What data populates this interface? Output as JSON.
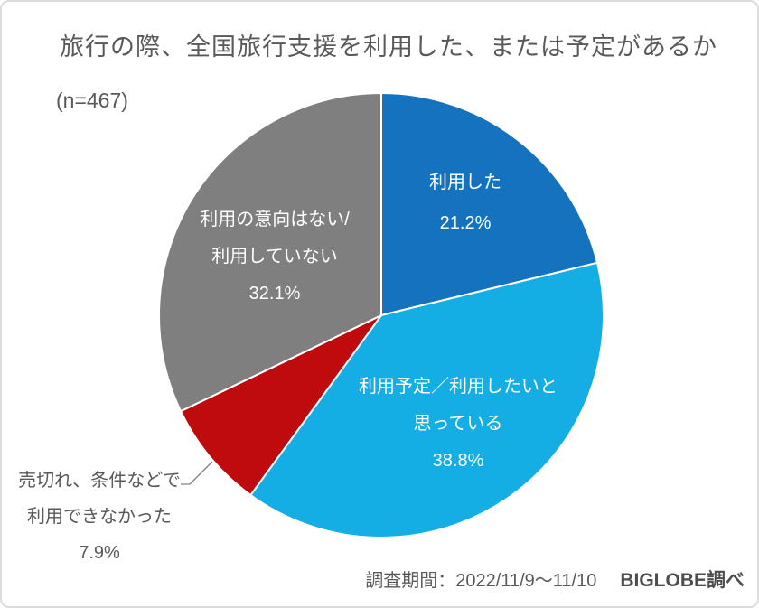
{
  "header": {
    "title": "旅行の際、全国旅行支援を利用した、または予定があるか",
    "sample_size": "(n=467)"
  },
  "chart_data": {
    "type": "pie",
    "title": "旅行の際、全国旅行支援を利用した、または予定があるか",
    "sample_size_label": "(n=467)",
    "n": 467,
    "start_angle_deg": 0,
    "direction": "clockwise",
    "slice_border_color": "#ffffff",
    "slices": [
      {
        "name": "利用した",
        "value": 21.2,
        "color": "#1572BE",
        "label_position": "inside",
        "label_lines": [
          "利用した",
          "21.2%"
        ]
      },
      {
        "name": "利用予定／利用したいと思っている",
        "value": 38.8,
        "color": "#14ADE4",
        "label_position": "inside",
        "label_lines": [
          "利用予定／利用したいと",
          "思っている",
          "38.8%"
        ]
      },
      {
        "name": "売切れ、条件などで利用できなかった",
        "value": 7.9,
        "color": "#C00B0E",
        "label_position": "outside",
        "label_lines": [
          "売切れ、条件などで",
          "利用できなかった",
          "7.9%"
        ]
      },
      {
        "name": "利用の意向はない/利用していない",
        "value": 32.1,
        "color": "#7F7F7F",
        "label_position": "inside",
        "label_lines": [
          "利用の意向はない/",
          "利用していない",
          "32.1%"
        ]
      }
    ]
  },
  "footer": {
    "survey_period": "調査期間：2022/11/9～11/10",
    "source": "BIGLOBE調べ"
  },
  "colors": {
    "text_gray": "#595959",
    "label_white": "#ffffff",
    "leader_line": "#808080",
    "page_border": "#dcdcdc"
  }
}
